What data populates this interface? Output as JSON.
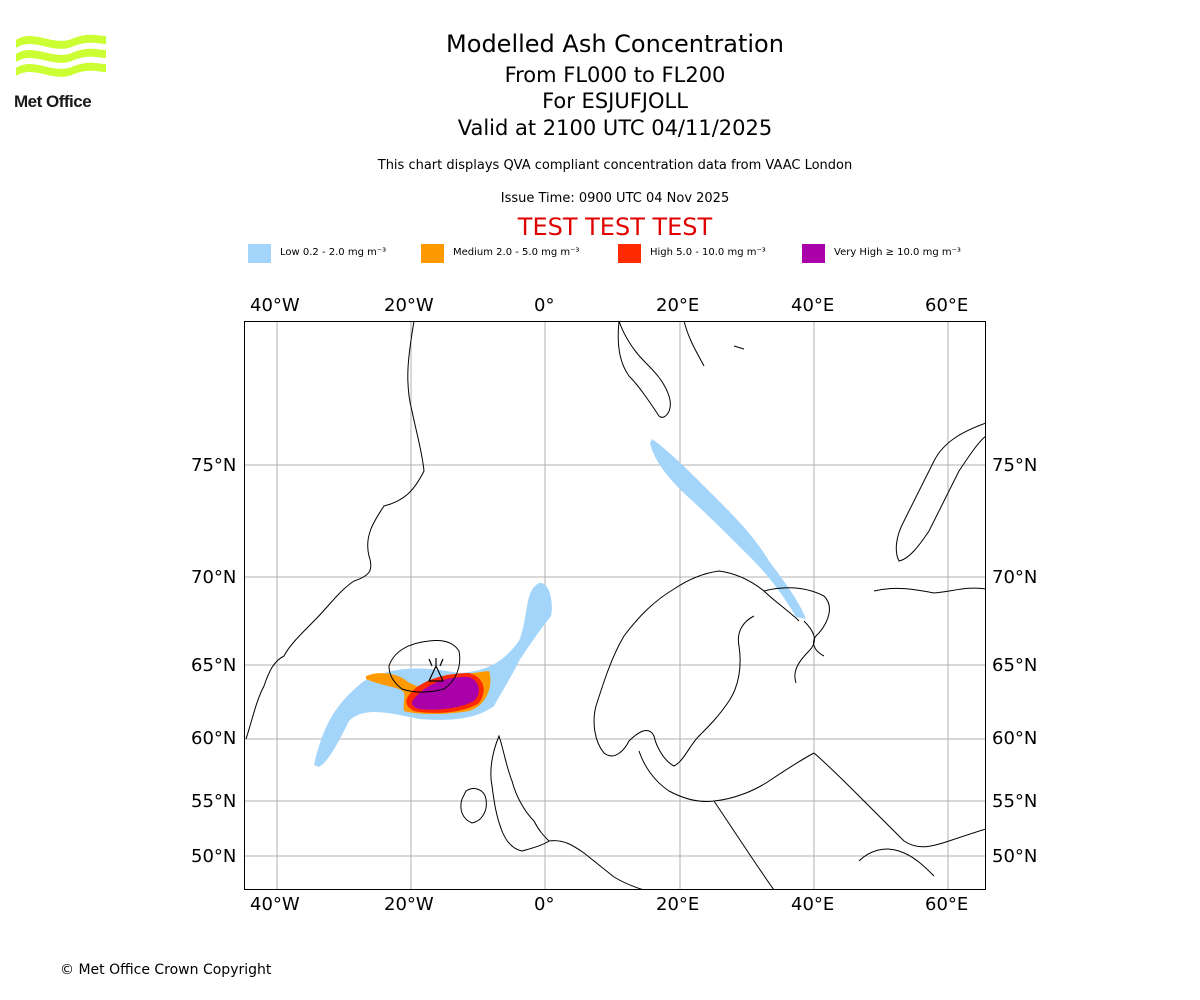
{
  "branding": {
    "logo_text": "Met Office"
  },
  "header": {
    "title": "Modelled Ash Concentration",
    "levels": "From FL000 to FL200",
    "volcano": "For ESJUFJOLL",
    "valid": "Valid at 2100 UTC 04/11/2025",
    "note": "This chart displays QVA compliant concentration data from VAAC London",
    "issue_time": "Issue Time: 0900 UTC 04 Nov 2025",
    "test_banner": "TEST TEST TEST"
  },
  "legend": [
    {
      "label": "Low 0.2 - 2.0 mg m⁻³",
      "color": "#a3d4fa"
    },
    {
      "label": "Medium 2.0 - 5.0 mg m⁻³",
      "color": "#ff9900"
    },
    {
      "label": "High 5.0 - 10.0 mg m⁻³",
      "color": "#ff2a00"
    },
    {
      "label": "Very High ≥ 10.0 mg m⁻³",
      "color": "#aa00aa"
    }
  ],
  "map": {
    "lon_labels": [
      "40°W",
      "20°W",
      "0°",
      "20°E",
      "40°E",
      "60°E"
    ],
    "lat_labels": [
      "75°N",
      "70°N",
      "65°N",
      "60°N",
      "55°N",
      "50°N"
    ],
    "colors": {
      "coast": "#000000",
      "grid": "#b0b0b0",
      "frame": "#000000"
    }
  },
  "footer": {
    "copyright": "© Met Office Crown Copyright"
  }
}
